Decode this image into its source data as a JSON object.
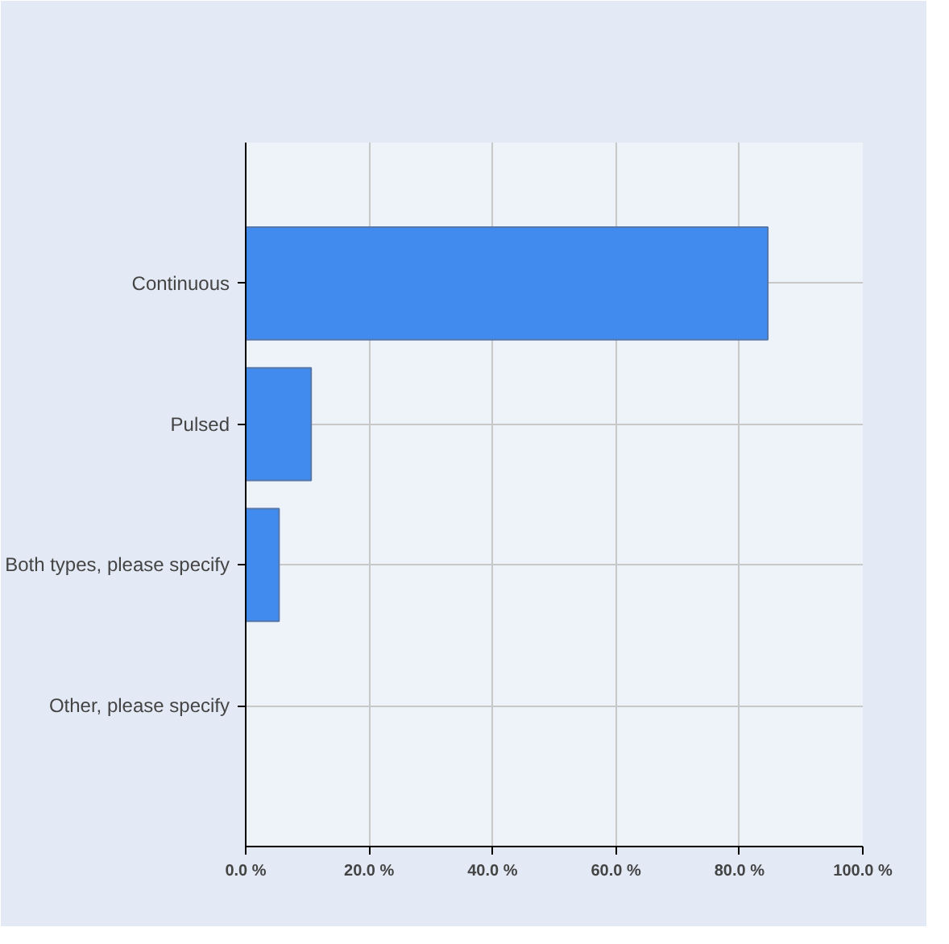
{
  "chart_data": {
    "type": "bar",
    "orientation": "horizontal",
    "categories": [
      "Continuous",
      "Pulsed",
      "Both types, please specify",
      "Other, please specify"
    ],
    "values": [
      84.6,
      10.6,
      5.4,
      0
    ],
    "color": "#428bee",
    "xlim": [
      0,
      100
    ],
    "xticks": [
      {
        "value": 0,
        "label": "0.0 %"
      },
      {
        "value": 20,
        "label": "20.0 %"
      },
      {
        "value": 40,
        "label": "40.0 %"
      },
      {
        "value": 60,
        "label": "60.0 %"
      },
      {
        "value": 80,
        "label": "80.0 %"
      },
      {
        "value": 100,
        "label": "100.0 %"
      }
    ],
    "grid": true
  }
}
